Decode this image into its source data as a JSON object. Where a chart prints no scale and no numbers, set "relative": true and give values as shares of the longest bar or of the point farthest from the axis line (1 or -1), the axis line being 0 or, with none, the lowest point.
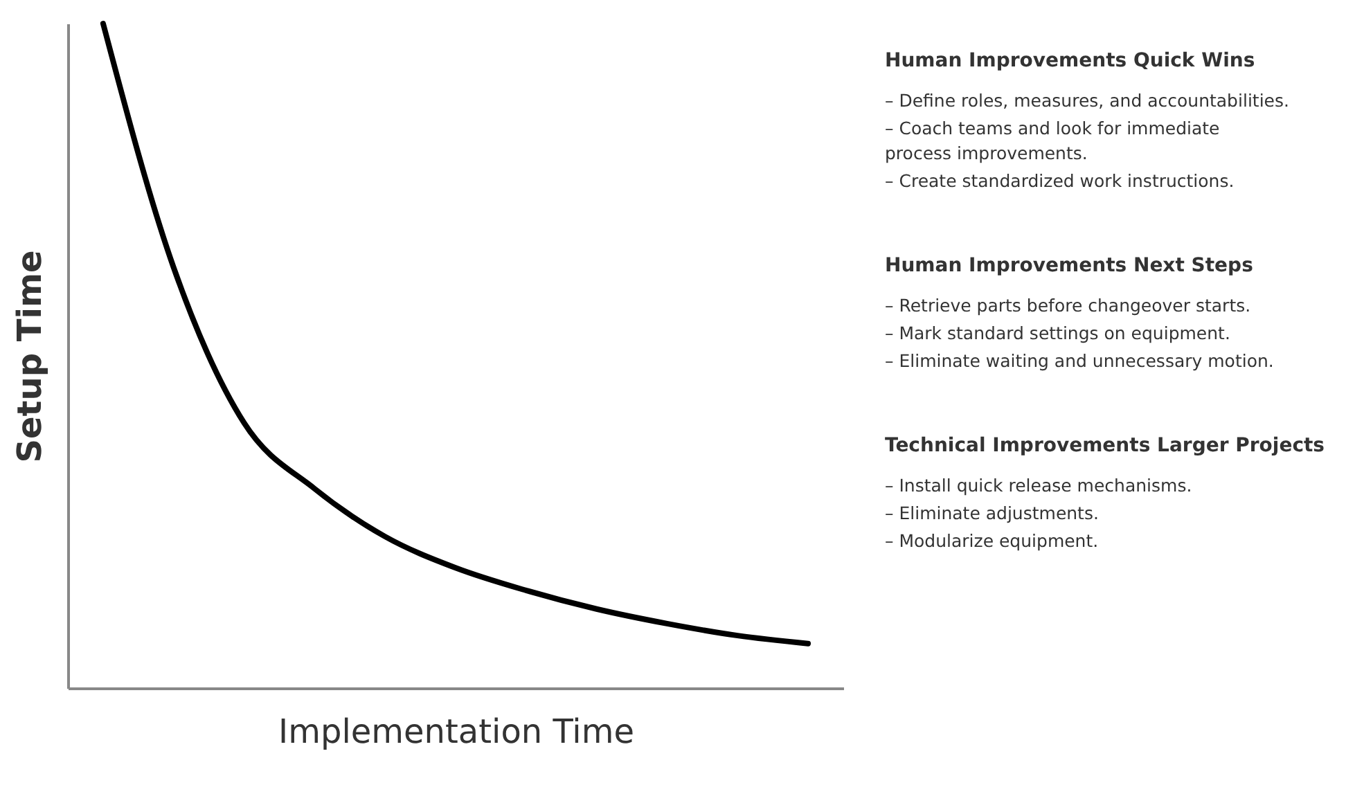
{
  "chart_data": {
    "type": "line",
    "relative": true,
    "xlabel": "Implementation Time",
    "ylabel": "Setup Time",
    "categories": [
      null,
      null,
      null,
      null,
      null,
      null,
      null,
      null,
      null,
      null,
      null
    ],
    "series": [
      {
        "color": "#000000",
        "values": [
          1,
          0.633,
          0.399,
          0.3,
          0.228,
          0.181,
          0.147,
          0.119,
          0.097,
          0.079,
          0.067
        ]
      }
    ],
    "annotations": [
      "Human Improvements Quick Wins",
      "– Define roles, measures, and accountabilities.",
      "– Coach teams and look for immediate\n   process improvements.",
      "– Create standardized work instructions.",
      "Human Improvements Next Steps",
      "– Retrieve parts before changeover starts.",
      "– Mark standard settings on equipment.",
      "– Eliminate waiting and unnecessary motion.",
      "Technical Improvements Larger Projects",
      "– Install quick release mechanisms.",
      "– Eliminate adjustments.",
      "– Modularize equipment."
    ]
  }
}
